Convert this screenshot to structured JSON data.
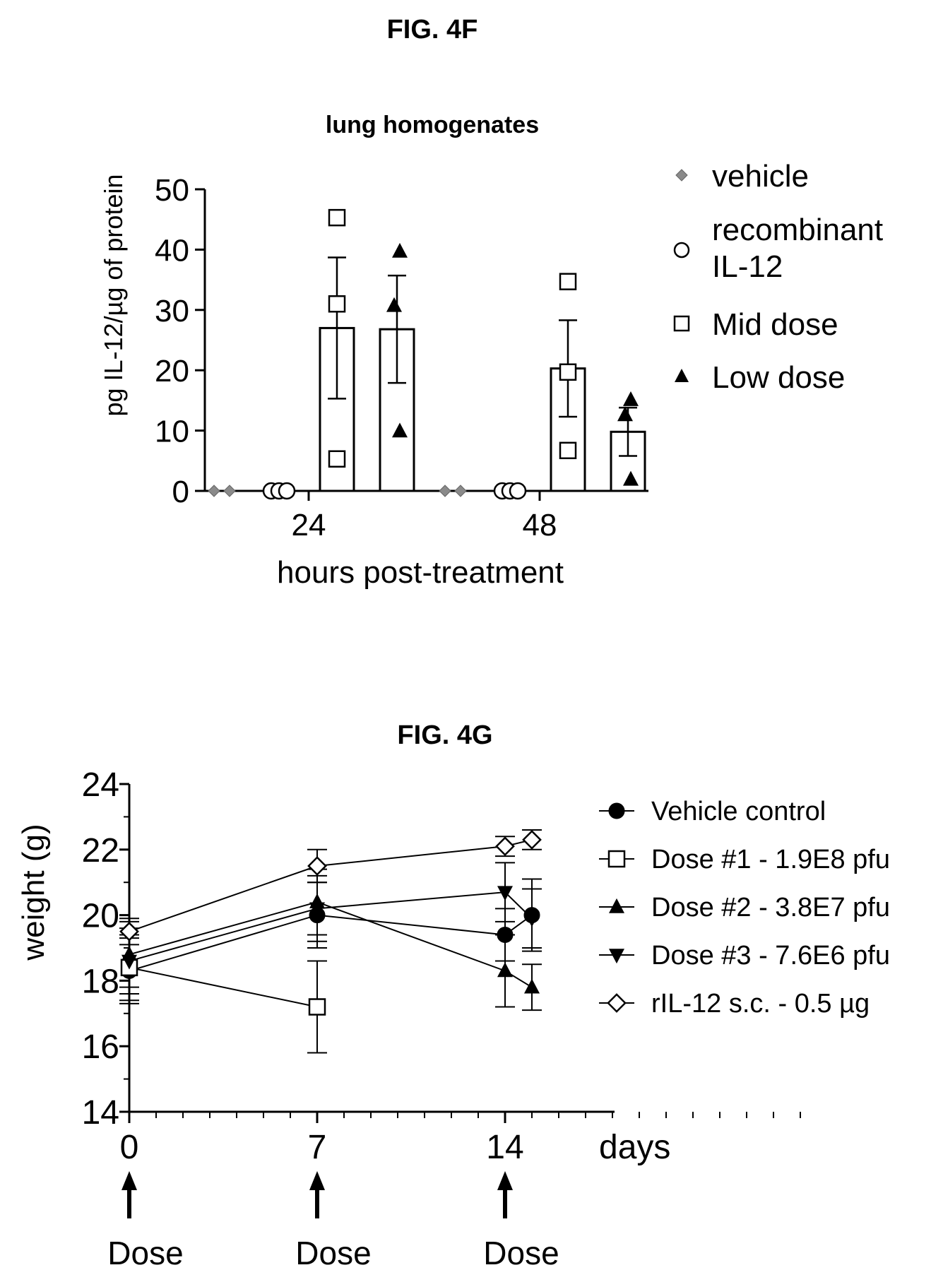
{
  "figures": {
    "f": {
      "label": "FIG. 4F"
    },
    "g": {
      "label": "FIG. 4G"
    }
  },
  "chart_data": [
    {
      "type": "bar",
      "title": "lung homogenates",
      "ylabel": "pg IL-12/µg of protein",
      "xlabel": "hours post-treatment",
      "categories": [
        "24",
        "48"
      ],
      "ylim": [
        0,
        50
      ],
      "yticks": [
        "0",
        "10",
        "20",
        "30",
        "40",
        "50"
      ],
      "grid": false,
      "legend_position": "right",
      "series": [
        {
          "name": "vehicle",
          "marker": "diamond-gray",
          "means": [
            0,
            0
          ],
          "sem": [
            0,
            0
          ],
          "points": [
            [
              0,
              0
            ],
            [
              0,
              0
            ]
          ]
        },
        {
          "name": "recombinant IL-12",
          "marker": "open-circle",
          "means": [
            0,
            0
          ],
          "sem": [
            0,
            0
          ],
          "points": [
            [
              0,
              0,
              0
            ],
            [
              0,
              0,
              0
            ]
          ]
        },
        {
          "name": "Mid dose",
          "marker": "open-square",
          "means": [
            27,
            20.3
          ],
          "sem": [
            11.7,
            8
          ],
          "points": [
            [
              45.3,
              31,
              5.3
            ],
            [
              34.7,
              19.7,
              6.7
            ]
          ]
        },
        {
          "name": "Low dose",
          "marker": "filled-triangle",
          "means": [
            26.8,
            9.8
          ],
          "sem": [
            8.9,
            4
          ],
          "points": [
            [
              39.7,
              30.7,
              9.9
            ],
            [
              15.1,
              12.6,
              1.9
            ]
          ]
        }
      ]
    },
    {
      "type": "line",
      "ylabel": "weight (g)",
      "xlabel": "days",
      "ylim": [
        14,
        24
      ],
      "yticks": [
        "14",
        "16",
        "18",
        "20",
        "22",
        "24"
      ],
      "xlim": [
        0,
        25
      ],
      "xticks": [
        "0",
        "7",
        "14"
      ],
      "grid": false,
      "legend_position": "right",
      "dose_label": "Dose",
      "dose_days": [
        0,
        7,
        14
      ],
      "series": [
        {
          "name": "Vehicle control",
          "marker": "filled-circle",
          "x": [
            0,
            7,
            14,
            15
          ],
          "y": [
            18.3,
            20,
            19.4,
            20
          ],
          "err": [
            1,
            1,
            0.8,
            1.1
          ]
        },
        {
          "name": "Dose #1 - 1.9E8 pfu",
          "marker": "open-square",
          "x": [
            0,
            7
          ],
          "y": [
            18.4,
            17.2
          ],
          "err": [
            1,
            1.4
          ]
        },
        {
          "name": "Dose #2 - 3.8E7 pfu",
          "marker": "filled-triangle",
          "x": [
            0,
            7,
            14,
            15
          ],
          "y": [
            18.8,
            20.4,
            18.3,
            17.8
          ],
          "err": [
            1,
            1,
            1.1,
            0.7
          ]
        },
        {
          "name": "Dose #3 - 7.6E6 pfu",
          "marker": "filled-triangle-down",
          "x": [
            0,
            7,
            14,
            15
          ],
          "y": [
            18.6,
            20.2,
            20.7,
            19.9
          ],
          "err": [
            1,
            1,
            0.9,
            0.9
          ]
        },
        {
          "name": "rIL-12 s.c. - 0.5 µg",
          "marker": "open-diamond",
          "x": [
            0,
            7,
            14,
            15
          ],
          "y": [
            19.5,
            21.5,
            22.1,
            22.3
          ],
          "err": [
            0.4,
            0.5,
            0.3,
            0.3
          ]
        }
      ]
    }
  ]
}
